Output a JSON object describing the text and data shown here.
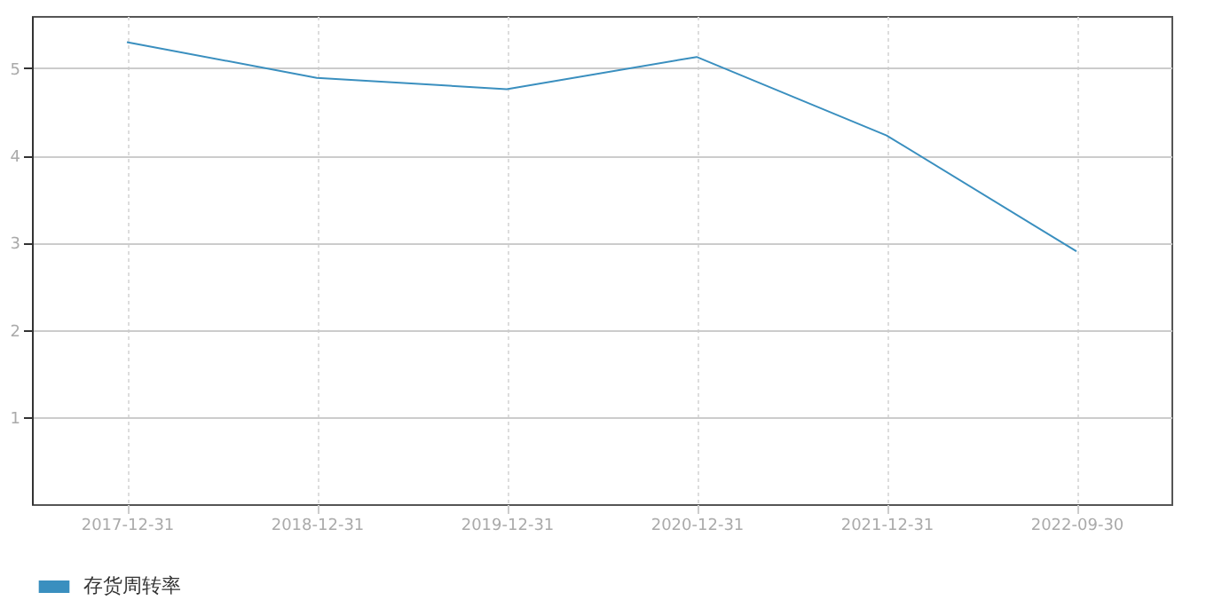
{
  "chart_data": {
    "type": "line",
    "categories": [
      "2017-12-31",
      "2018-12-31",
      "2019-12-31",
      "2020-12-31",
      "2021-12-31",
      "2022-09-30"
    ],
    "series": [
      {
        "name": "存货周转率",
        "color": "#3a8fbf",
        "values": [
          5.3,
          4.89,
          4.76,
          5.13,
          4.23,
          2.9
        ]
      }
    ],
    "ylim": [
      0,
      5.6
    ],
    "yticks": [
      1,
      2,
      3,
      4,
      5
    ],
    "grid": true,
    "legend": "bottom",
    "marker": "none",
    "line_style": "solid"
  }
}
